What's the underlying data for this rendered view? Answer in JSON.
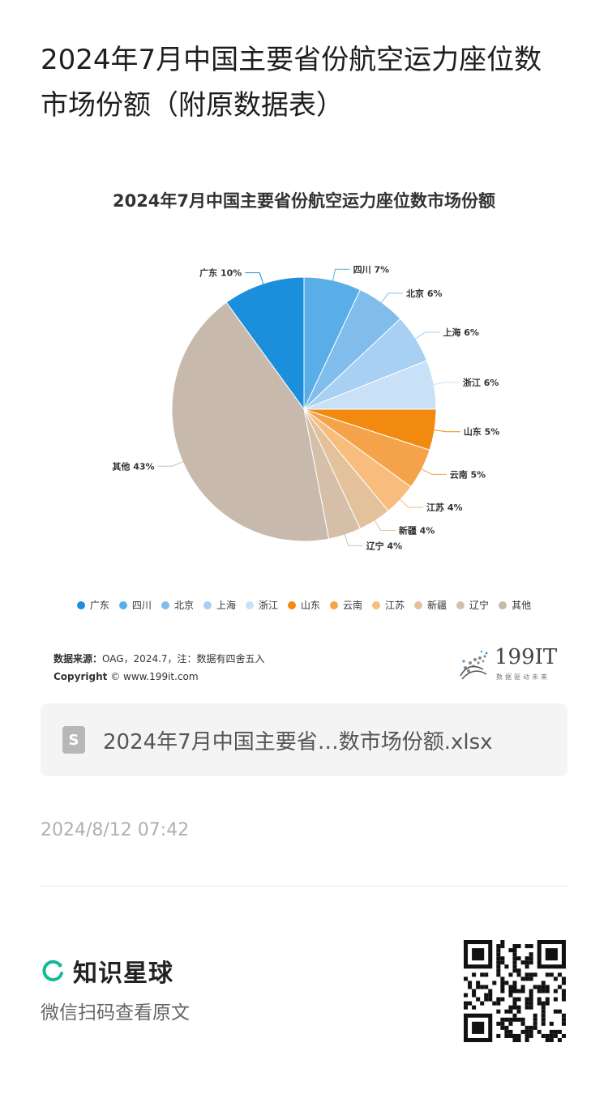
{
  "page": {
    "title": "2024年7月中国主要省份航空运力座位数市场份额（附原数据表）"
  },
  "chart": {
    "title": "2024年7月中国主要省份航空运力座位数市场份额",
    "source_label": "数据来源：",
    "source_text": "OAG，2024.7，注：数据有四舍五入",
    "copyright_label": "Copyright",
    "copyright_text": "© www.199it.com",
    "brand_name": "199IT",
    "brand_tagline": "数据驱动未来"
  },
  "chart_data": {
    "type": "pie",
    "title": "2024年7月中国主要省份航空运力座位数市场份额",
    "legend_position": "bottom",
    "slices": [
      {
        "label": "广东",
        "value": 10,
        "display": "广东 10%",
        "color": "#1b8fdc"
      },
      {
        "label": "四川",
        "value": 7,
        "display": "四川 7%",
        "color": "#5aaee8"
      },
      {
        "label": "北京",
        "value": 6,
        "display": "北京 6%",
        "color": "#80bded"
      },
      {
        "label": "上海",
        "value": 6,
        "display": "上海 6%",
        "color": "#a8d0f3"
      },
      {
        "label": "浙江",
        "value": 6,
        "display": "浙江 6%",
        "color": "#c9e1f6"
      },
      {
        "label": "山东",
        "value": 5,
        "display": "山东 5%",
        "color": "#f28a0f"
      },
      {
        "label": "云南",
        "value": 5,
        "display": "云南 5%",
        "color": "#f5a34a"
      },
      {
        "label": "江苏",
        "value": 4,
        "display": "江苏 4%",
        "color": "#f8bd7c"
      },
      {
        "label": "新疆",
        "value": 4,
        "display": "新疆 4%",
        "color": "#e3c29b"
      },
      {
        "label": "辽宁",
        "value": 4,
        "display": "辽宁 4%",
        "color": "#d6bfa8"
      },
      {
        "label": "其他",
        "value": 43,
        "display": "其他 43%",
        "color": "#c8b9ad"
      }
    ]
  },
  "attachment": {
    "file_name": "2024年7月中国主要省…数市场份额.xlsx",
    "icon": "spreadsheet-file-icon"
  },
  "post": {
    "timestamp": "2024/8/12 07:42"
  },
  "footer": {
    "app_name": "知识星球",
    "subtitle": "微信扫码查看原文",
    "app_color": "#16b998"
  }
}
